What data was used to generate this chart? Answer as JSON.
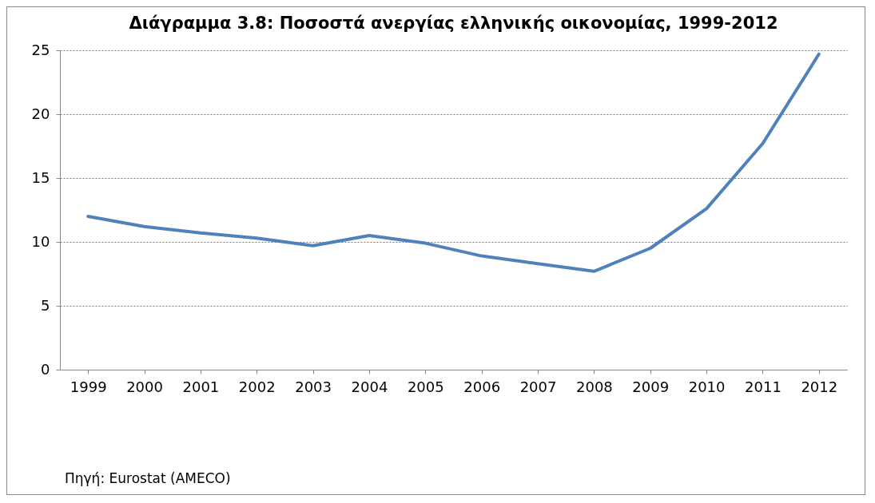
{
  "chart_data": {
    "type": "line",
    "title": "Διάγραμμα 3.8: Ποσοστά ανεργίας ελληνικής οικονομίας, 1999-2012",
    "categories": [
      "1999",
      "2000",
      "2001",
      "2002",
      "2003",
      "2004",
      "2005",
      "2006",
      "2007",
      "2008",
      "2009",
      "2010",
      "2011",
      "2012"
    ],
    "series": [
      {
        "color": "#4f81bd",
        "values": [
          12.0,
          11.2,
          10.7,
          10.3,
          9.7,
          10.5,
          9.9,
          8.9,
          8.3,
          7.7,
          9.5,
          12.6,
          17.7,
          24.7
        ]
      }
    ],
    "ylim": [
      0,
      25
    ],
    "yticks": [
      0,
      5,
      10,
      15,
      20,
      25
    ],
    "grid": "y",
    "legend": false,
    "marker": "none",
    "line_style": "solid",
    "annotations": [
      "Πηγή: Eurostat (AMECO)"
    ]
  }
}
